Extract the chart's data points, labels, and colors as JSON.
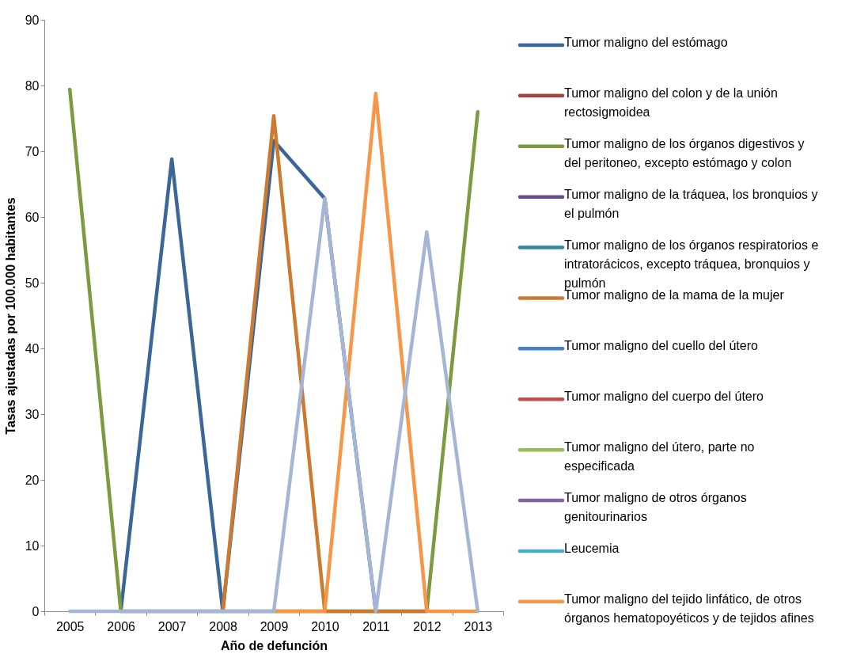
{
  "chart_data": {
    "type": "line",
    "xlabel": "Año de defunción",
    "ylabel": "Tasas ajustadas por 100.000 habitantes",
    "categories": [
      "2005",
      "2006",
      "2007",
      "2008",
      "2009",
      "2010",
      "2011",
      "2012",
      "2013"
    ],
    "ylim": [
      0,
      90
    ],
    "yticks": [
      0,
      10,
      20,
      30,
      40,
      50,
      60,
      70,
      80,
      90
    ],
    "legend": "right",
    "line_style": "solid",
    "marker": "none",
    "series": [
      {
        "name": "Tumor maligno del estómago",
        "color": "#3a6698",
        "values": [
          null,
          0,
          68.8,
          0,
          71.6,
          62.8,
          0,
          null,
          null
        ]
      },
      {
        "name": "Tumor maligno del colon y de la unión rectosigmoidea",
        "color": "#a5403c",
        "values": [
          null,
          null,
          null,
          null,
          null,
          null,
          null,
          null,
          null
        ]
      },
      {
        "name": "Tumor maligno de los órganos digestivos y del peritoneo, excepto estómago y colon",
        "color": "#7d9a41",
        "values": [
          79.4,
          0,
          null,
          null,
          null,
          null,
          null,
          0,
          76
        ]
      },
      {
        "name": "Tumor maligno de la tráquea, los bronquios y el pulmón",
        "color": "#664d86",
        "values": [
          null,
          null,
          null,
          null,
          null,
          null,
          null,
          null,
          null
        ]
      },
      {
        "name": "Tumor maligno de los órganos respiratorios e intratorácicos, excepto tráquea, bronquios y pulmón",
        "color": "#34869c",
        "values": [
          null,
          null,
          null,
          null,
          null,
          null,
          null,
          null,
          null
        ]
      },
      {
        "name": "Tumor maligno de la mama de la mujer",
        "color": "#cc7a32",
        "values": [
          null,
          null,
          null,
          0,
          75.4,
          0,
          0,
          0,
          null
        ]
      },
      {
        "name": "Tumor maligno del cuello del útero",
        "color": "#4a7fc1",
        "values": [
          null,
          null,
          null,
          null,
          null,
          null,
          null,
          null,
          null
        ]
      },
      {
        "name": "Tumor maligno del cuerpo del útero",
        "color": "#c0504d",
        "values": [
          null,
          null,
          null,
          null,
          null,
          null,
          null,
          null,
          null
        ]
      },
      {
        "name": "Tumor maligno del útero, parte no especificada",
        "color": "#9bbb59",
        "values": [
          null,
          null,
          null,
          null,
          null,
          null,
          null,
          null,
          null
        ]
      },
      {
        "name": "Tumor maligno de otros órganos genitourinarios",
        "color": "#8064a2",
        "values": [
          null,
          null,
          null,
          null,
          null,
          null,
          null,
          null,
          null
        ]
      },
      {
        "name": "Leucemia",
        "color": "#4bacc6",
        "values": [
          null,
          null,
          null,
          null,
          null,
          null,
          null,
          null,
          null
        ]
      },
      {
        "name": "Tumor maligno del tejido linfático, de otros órganos hematopoyéticos y de tejidos afines",
        "color": "#f79646",
        "values": [
          null,
          null,
          null,
          null,
          0,
          0,
          78.8,
          0,
          0
        ]
      },
      {
        "color": "#a5b6d5",
        "values": [
          0,
          0,
          0,
          0,
          0,
          62.8,
          0,
          57.7,
          0
        ]
      }
    ]
  }
}
